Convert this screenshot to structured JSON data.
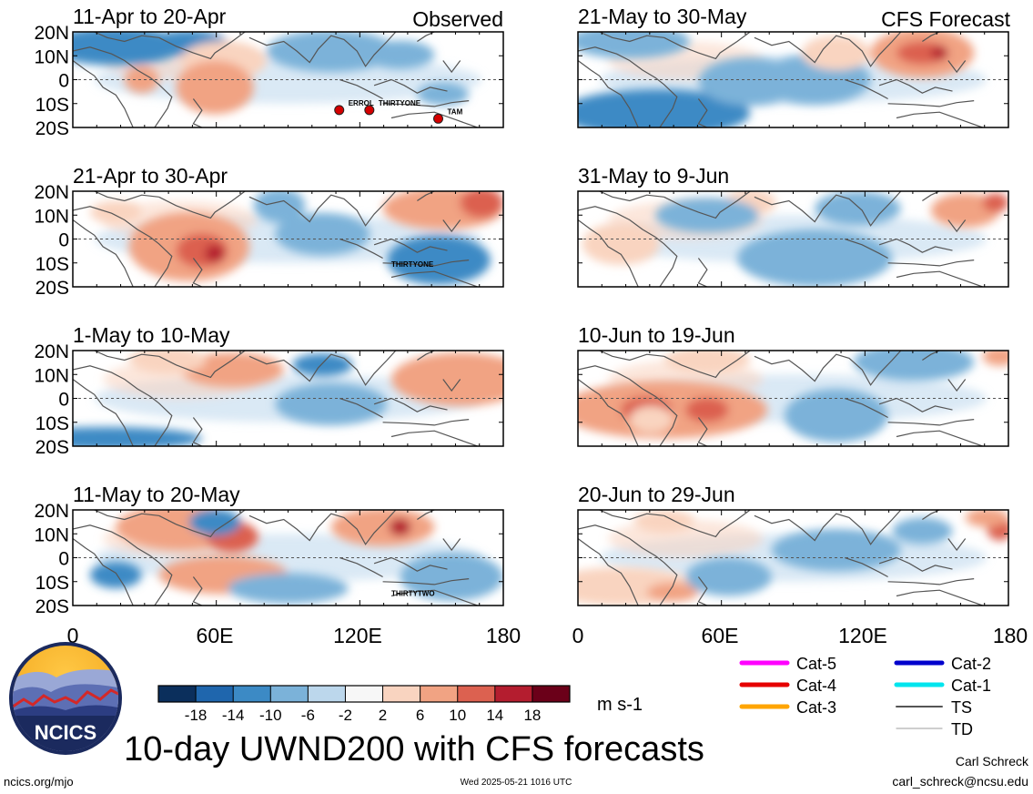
{
  "left_column_label": "Observed",
  "right_column_label": "CFS Forecast",
  "lat_labels": [
    "20N",
    "10N",
    "0",
    "10S",
    "20S"
  ],
  "lon_labels": [
    "0",
    "60E",
    "120E",
    "180"
  ],
  "panels": [
    {
      "title": "11-Apr to 20-Apr",
      "column": "observed",
      "storms": [
        "ERROL",
        "THIRTYONE",
        "TAM"
      ]
    },
    {
      "title": "21-Apr to 30-Apr",
      "column": "observed",
      "storms": [
        "THIRTYONE"
      ]
    },
    {
      "title": "1-May to 10-May",
      "column": "observed",
      "storms": []
    },
    {
      "title": "11-May to 20-May",
      "column": "observed",
      "storms": [
        "THIRTYTWO"
      ]
    },
    {
      "title": "21-May to 30-May",
      "column": "forecast",
      "storms": []
    },
    {
      "title": "31-May to 9-Jun",
      "column": "forecast",
      "storms": []
    },
    {
      "title": "10-Jun to 19-Jun",
      "column": "forecast",
      "storms": []
    },
    {
      "title": "20-Jun to 29-Jun",
      "column": "forecast",
      "storms": []
    }
  ],
  "colorbar": {
    "ticks": [
      "-18",
      "-14",
      "-10",
      "-6",
      "-2",
      "2",
      "6",
      "10",
      "14",
      "18"
    ],
    "colors": [
      "#0b2f5c",
      "#1f66ad",
      "#3c8ac5",
      "#7bb2d9",
      "#bcd7ec",
      "#f7f7f7",
      "#f9d4c0",
      "#f1a383",
      "#dc6150",
      "#b41d2f",
      "#6b0019"
    ],
    "units": "m s-1"
  },
  "legend": [
    {
      "label": "Cat-5",
      "color": "#ff00ff"
    },
    {
      "label": "Cat-4",
      "color": "#e60000"
    },
    {
      "label": "Cat-3",
      "color": "#ffa500"
    },
    {
      "label": "Cat-2",
      "color": "#0000cc"
    },
    {
      "label": "Cat-1",
      "color": "#00e5ee"
    },
    {
      "label": "TS",
      "color": "#555555"
    },
    {
      "label": "TD",
      "color": "#b0b0b0"
    }
  ],
  "logo_text": "NCICS",
  "main_title": "10-day UWND200 with CFS forecasts",
  "url": "ncics.org/mjo",
  "timestamp": "Wed 2025-05-21 1016 UTC",
  "author": "Carl Schreck",
  "email": "carl_schreck@ncsu.edu"
}
